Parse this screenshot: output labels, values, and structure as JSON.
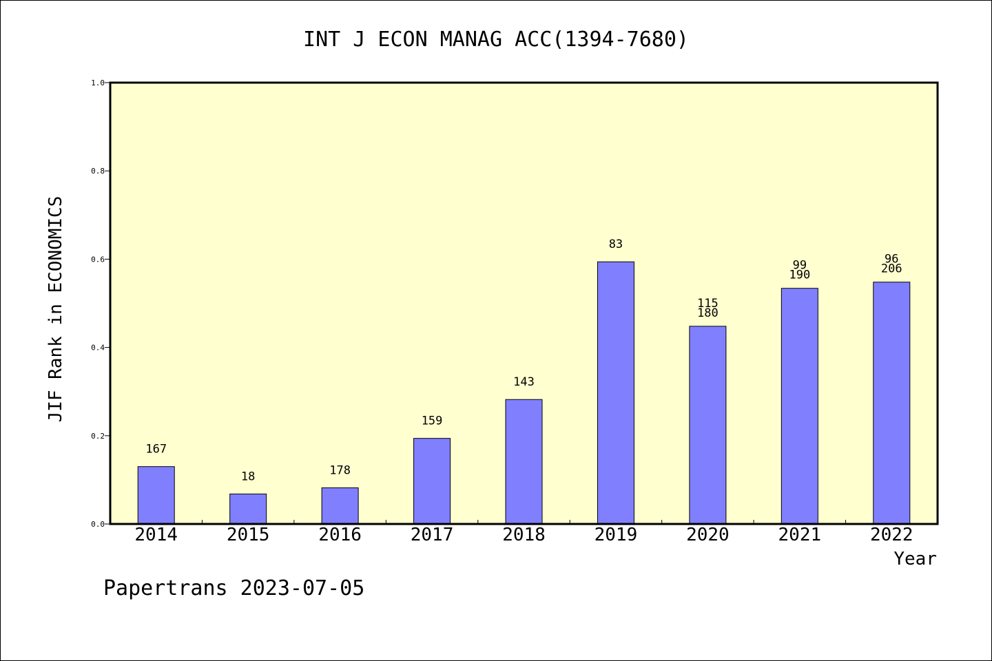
{
  "chart_data": {
    "type": "bar",
    "title": "INT J ECON MANAG ACC(1394-7680)",
    "xlabel": "Year",
    "ylabel": "JIF Rank in ECONOMICS",
    "ylim": [
      0,
      1.0
    ],
    "yticks": [
      "0.0",
      "0.2",
      "0.4",
      "0.6",
      "0.8",
      "1.0"
    ],
    "categories": [
      "2014",
      "2015",
      "2016",
      "2017",
      "2018",
      "2019",
      "2020",
      "2021",
      "2022"
    ],
    "values": [
      0.13,
      0.068,
      0.082,
      0.194,
      0.282,
      0.594,
      0.448,
      0.534,
      0.548
    ],
    "bar_labels": [
      [
        "167"
      ],
      [
        "18"
      ],
      [
        "178"
      ],
      [
        "159"
      ],
      [
        "143"
      ],
      [
        "83"
      ],
      [
        "115",
        "180"
      ],
      [
        "99",
        "190"
      ],
      [
        "96",
        "206"
      ]
    ],
    "grid": false,
    "colors": {
      "plot_bg": "#ffffd0",
      "bar_fill": "#8080ff",
      "bar_stroke": "#000000"
    }
  },
  "footer": "Papertrans 2023-07-05"
}
